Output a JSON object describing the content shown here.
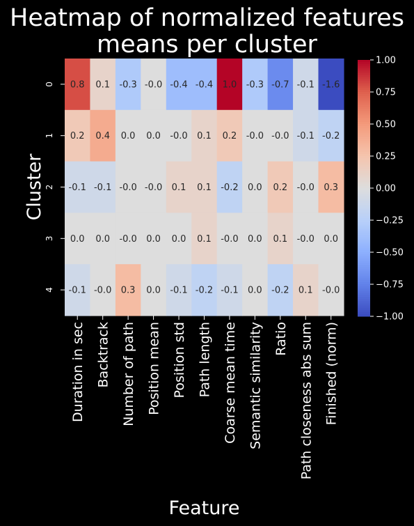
{
  "chart_data": {
    "type": "heatmap",
    "title_lines": [
      "Heatmap of normalized features",
      "means per cluster"
    ],
    "xlabel": "Feature",
    "ylabel": "Cluster",
    "x_categories": [
      "Duration in sec",
      "Backtrack",
      "Number of path",
      "Position mean",
      "Position std",
      "Path length",
      "Coarse mean time",
      "Semantic similarity",
      "Ratio",
      "Path closeness abs sum",
      "Finished (norm)"
    ],
    "y_categories": [
      "0",
      "1",
      "2",
      "3",
      "4"
    ],
    "values": [
      [
        0.8,
        0.1,
        -0.3,
        -0.0,
        -0.4,
        -0.4,
        1.0,
        -0.3,
        -0.7,
        -0.1,
        -1.6
      ],
      [
        0.2,
        0.4,
        0.0,
        0.0,
        -0.0,
        0.1,
        0.2,
        -0.0,
        -0.0,
        -0.1,
        -0.2
      ],
      [
        -0.1,
        -0.1,
        -0.0,
        -0.0,
        0.1,
        0.1,
        -0.2,
        0.0,
        0.2,
        -0.0,
        0.3
      ],
      [
        0.0,
        0.0,
        -0.0,
        0.0,
        0.0,
        0.1,
        -0.0,
        0.0,
        0.1,
        -0.0,
        0.0
      ],
      [
        -0.1,
        -0.0,
        0.3,
        0.0,
        -0.1,
        -0.2,
        -0.1,
        0.0,
        -0.2,
        0.1,
        -0.0
      ]
    ],
    "annotation_labels": [
      [
        "0.8",
        "0.1",
        "-0.3",
        "-0.0",
        "-0.4",
        "-0.4",
        "1.0",
        "-0.3",
        "-0.7",
        "-0.1",
        "-1.6"
      ],
      [
        "0.2",
        "0.4",
        "0.0",
        "0.0",
        "-0.0",
        "0.1",
        "0.2",
        "-0.0",
        "-0.0",
        "-0.1",
        "-0.2"
      ],
      [
        "-0.1",
        "-0.1",
        "-0.0",
        "-0.0",
        "0.1",
        "0.1",
        "-0.2",
        "0.0",
        "0.2",
        "-0.0",
        "0.3"
      ],
      [
        "0.0",
        "0.0",
        "-0.0",
        "0.0",
        "0.0",
        "0.1",
        "-0.0",
        "0.0",
        "0.1",
        "-0.0",
        "0.0"
      ],
      [
        "-0.1",
        "-0.0",
        "0.3",
        "0.0",
        "-0.1",
        "-0.2",
        "-0.1",
        "0.0",
        "-0.2",
        "0.1",
        "-0.0"
      ]
    ],
    "colormap": "coolwarm",
    "color_range": [
      -1.0,
      1.0
    ],
    "colorbar_ticks": [
      1.0,
      0.75,
      0.5,
      0.25,
      0.0,
      -0.25,
      -0.5,
      -0.75,
      -1.0
    ],
    "colorbar_tick_labels": [
      "1.00",
      "0.75",
      "0.50",
      "0.25",
      "0.00",
      "−0.25",
      "−0.50",
      "−0.75",
      "−1.00"
    ],
    "background_color": "#000000",
    "text_color": "#ffffff",
    "annotation_color": "#262626"
  }
}
